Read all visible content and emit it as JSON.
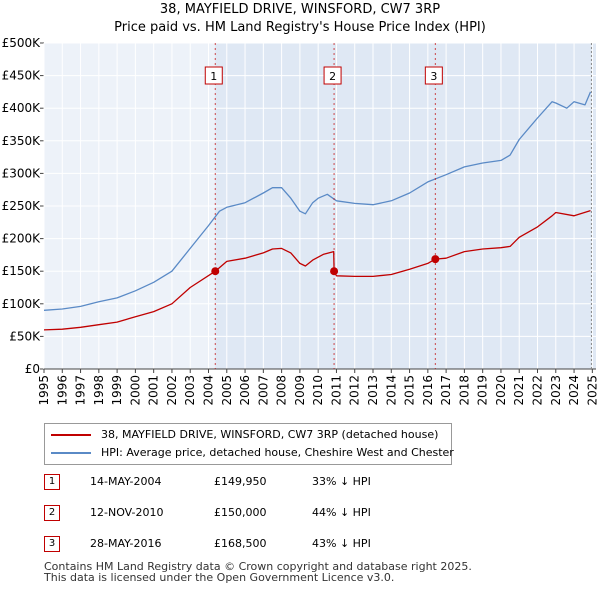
{
  "header": {
    "title": "38, MAYFIELD DRIVE, WINSFORD, CW7 3RP",
    "subtitle": "Price paid vs. HM Land Registry's House Price Index (HPI)"
  },
  "colors": {
    "property_line": "#c00000",
    "hpi_line": "#5a8ac6",
    "plot_background": "#edf2f9",
    "shaded_background": "#dfe8f4",
    "grid": "#ffffff",
    "marker_border": "#c00000"
  },
  "legend": {
    "property_label": "38, MAYFIELD DRIVE, WINSFORD, CW7 3RP (detached house)",
    "hpi_label": "HPI: Average price, detached house, Cheshire West and Chester"
  },
  "sales": [
    {
      "num": "1",
      "date": "14-MAY-2004",
      "price": "£149,950",
      "hpi_diff": "33% ↓ HPI"
    },
    {
      "num": "2",
      "date": "12-NOV-2010",
      "price": "£150,000",
      "hpi_diff": "44% ↓ HPI"
    },
    {
      "num": "3",
      "date": "28-MAY-2016",
      "price": "£168,500",
      "hpi_diff": "43% ↓ HPI"
    }
  ],
  "footer": {
    "line1": "Contains HM Land Registry data © Crown copyright and database right 2025.",
    "line2": "This data is licensed under the Open Government Licence v3.0."
  },
  "chart_data": {
    "type": "line",
    "title": "38, MAYFIELD DRIVE, WINSFORD, CW7 3RP",
    "subtitle": "Price paid vs. HM Land Registry's House Price Index (HPI)",
    "xlabel": "",
    "ylabel": "",
    "xlim": [
      1995,
      2025.2
    ],
    "ylim": [
      0,
      500000
    ],
    "x_ticks": [
      1995,
      1996,
      1997,
      1998,
      1999,
      2000,
      2001,
      2002,
      2003,
      2004,
      2005,
      2006,
      2007,
      2008,
      2009,
      2010,
      2011,
      2012,
      2013,
      2014,
      2015,
      2016,
      2017,
      2018,
      2019,
      2020,
      2021,
      2022,
      2023,
      2024,
      2025
    ],
    "y_ticks": [
      0,
      50000,
      100000,
      150000,
      200000,
      250000,
      300000,
      350000,
      400000,
      450000,
      500000
    ],
    "y_tick_labels": [
      "£0",
      "£50K",
      "£100K",
      "£150K",
      "£200K",
      "£250K",
      "£300K",
      "£350K",
      "£400K",
      "£450K",
      "£500K"
    ],
    "grid": true,
    "shaded_from_x": 2004.37,
    "sale_markers": [
      {
        "label": "1",
        "x": 2004.37,
        "y": 149950
      },
      {
        "label": "2",
        "x": 2010.87,
        "y": 150000
      },
      {
        "label": "3",
        "x": 2016.41,
        "y": 168500
      }
    ],
    "series": [
      {
        "name": "38, MAYFIELD DRIVE, WINSFORD, CW7 3RP (detached house)",
        "color": "#c00000",
        "x": [
          1995,
          1996,
          1997,
          1998,
          1999,
          2000,
          2001,
          2002,
          2003,
          2004.37,
          2005,
          2006,
          2007,
          2007.5,
          2008,
          2008.5,
          2009,
          2009.3,
          2009.7,
          2010.3,
          2010.85,
          2010.87,
          2011,
          2012,
          2013,
          2014,
          2015,
          2016,
          2016.41,
          2017,
          2018,
          2019,
          2020,
          2020.5,
          2021,
          2022,
          2022.8,
          2023,
          2024,
          2024.9
        ],
        "y": [
          60000,
          61000,
          64000,
          68000,
          72000,
          80000,
          88000,
          100000,
          125000,
          149950,
          165000,
          170000,
          178000,
          184000,
          185000,
          178000,
          162000,
          158000,
          167000,
          176000,
          180000,
          150000,
          143000,
          142000,
          142000,
          145000,
          153000,
          162000,
          168500,
          170000,
          180000,
          184000,
          186000,
          188000,
          202000,
          218000,
          235000,
          240000,
          235000,
          243000
        ]
      },
      {
        "name": "HPI: Average price, detached house, Cheshire West and Chester",
        "color": "#5a8ac6",
        "x": [
          1995,
          1996,
          1997,
          1998,
          1999,
          2000,
          2001,
          2002,
          2003,
          2004,
          2004.6,
          2005,
          2006,
          2007,
          2007.5,
          2008,
          2008.5,
          2009,
          2009.3,
          2009.7,
          2010,
          2010.5,
          2011,
          2012,
          2013,
          2014,
          2015,
          2016,
          2017,
          2018,
          2019,
          2020,
          2020.5,
          2021,
          2022,
          2022.8,
          2023,
          2023.6,
          2024,
          2024.6,
          2024.9
        ],
        "y": [
          90000,
          92000,
          96000,
          103000,
          109000,
          120000,
          133000,
          150000,
          185000,
          220000,
          242000,
          248000,
          255000,
          270000,
          278000,
          278000,
          262000,
          242000,
          238000,
          255000,
          262000,
          268000,
          258000,
          254000,
          252000,
          258000,
          270000,
          287000,
          298000,
          310000,
          316000,
          320000,
          328000,
          352000,
          385000,
          410000,
          408000,
          400000,
          410000,
          405000,
          425000
        ]
      }
    ]
  }
}
